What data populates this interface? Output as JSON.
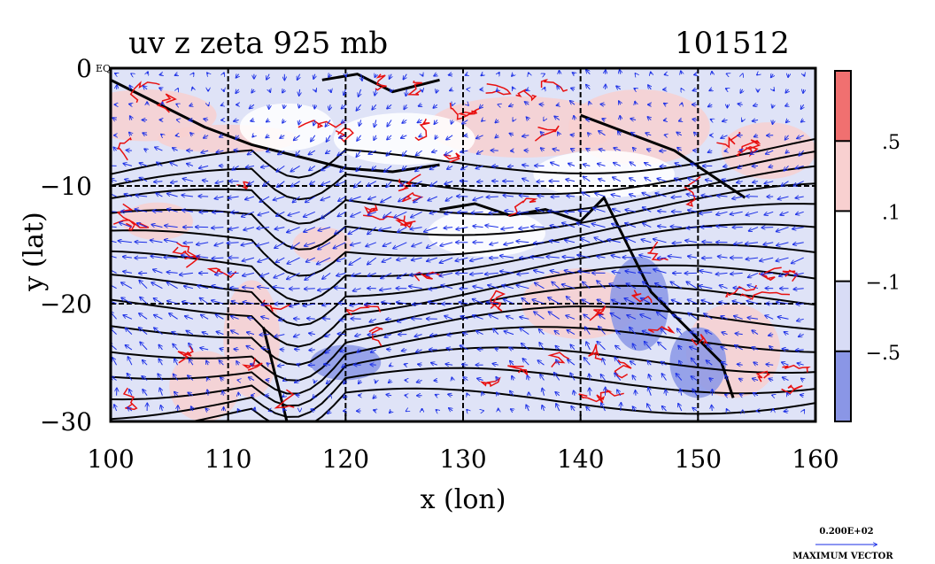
{
  "chart_data": {
    "type": "heatmap",
    "title": "uv z zeta 925 mb",
    "title_right": "101512",
    "xlabel": "x (lon)",
    "ylabel": "y (lat)",
    "xlim": [
      100,
      160
    ],
    "ylim": [
      -30,
      0
    ],
    "x_ticks": [
      100,
      110,
      120,
      130,
      140,
      150,
      160
    ],
    "y_ticks": [
      0,
      -10,
      -20,
      -30
    ],
    "x_tick_labels": [
      "100",
      "110",
      "120",
      "130",
      "140",
      "150",
      "160"
    ],
    "y_tick_labels": [
      "0",
      "−10",
      "−20",
      "−30"
    ],
    "y_tick_suffix": "EQ",
    "grid": true,
    "fields": [
      "uv wind vectors",
      "z contours",
      "zeta shading"
    ],
    "colorbar": {
      "labels": [
        ".5",
        ".1",
        "−.1",
        "−.5"
      ],
      "levels": [
        0.5,
        0.1,
        -0.1,
        -0.5
      ],
      "colors": [
        "#f07070",
        "#f8d0d0",
        "#ffffff",
        "#d8dcf6",
        "#8a96e6"
      ]
    },
    "vector_reference": {
      "value": "0.200E+02",
      "label": "MAXIMUM VECTOR"
    },
    "colors": {
      "contour": "#000000",
      "vectors": "#1a2ee6",
      "zeta_positive_line": "#e81010",
      "zeta_negative_fill": "#d8dcf6",
      "zeta_positive_fill": "#f8d0d0"
    }
  }
}
